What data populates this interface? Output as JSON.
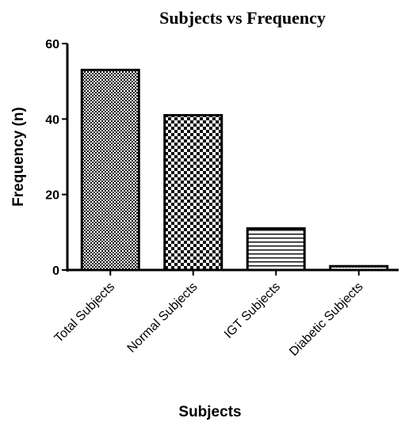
{
  "chart_data": {
    "type": "bar",
    "title": "Subjects vs Frequency",
    "x_label": "Subjects",
    "y_label": "Frequency (n)",
    "categories": [
      "Total Subjects",
      "Normal Subjects",
      "IGT Subjects",
      "Diabetic Subjects"
    ],
    "values": [
      53,
      41,
      11,
      1
    ],
    "ylim": [
      0,
      60
    ],
    "yticks": [
      0,
      20,
      40,
      60
    ]
  }
}
